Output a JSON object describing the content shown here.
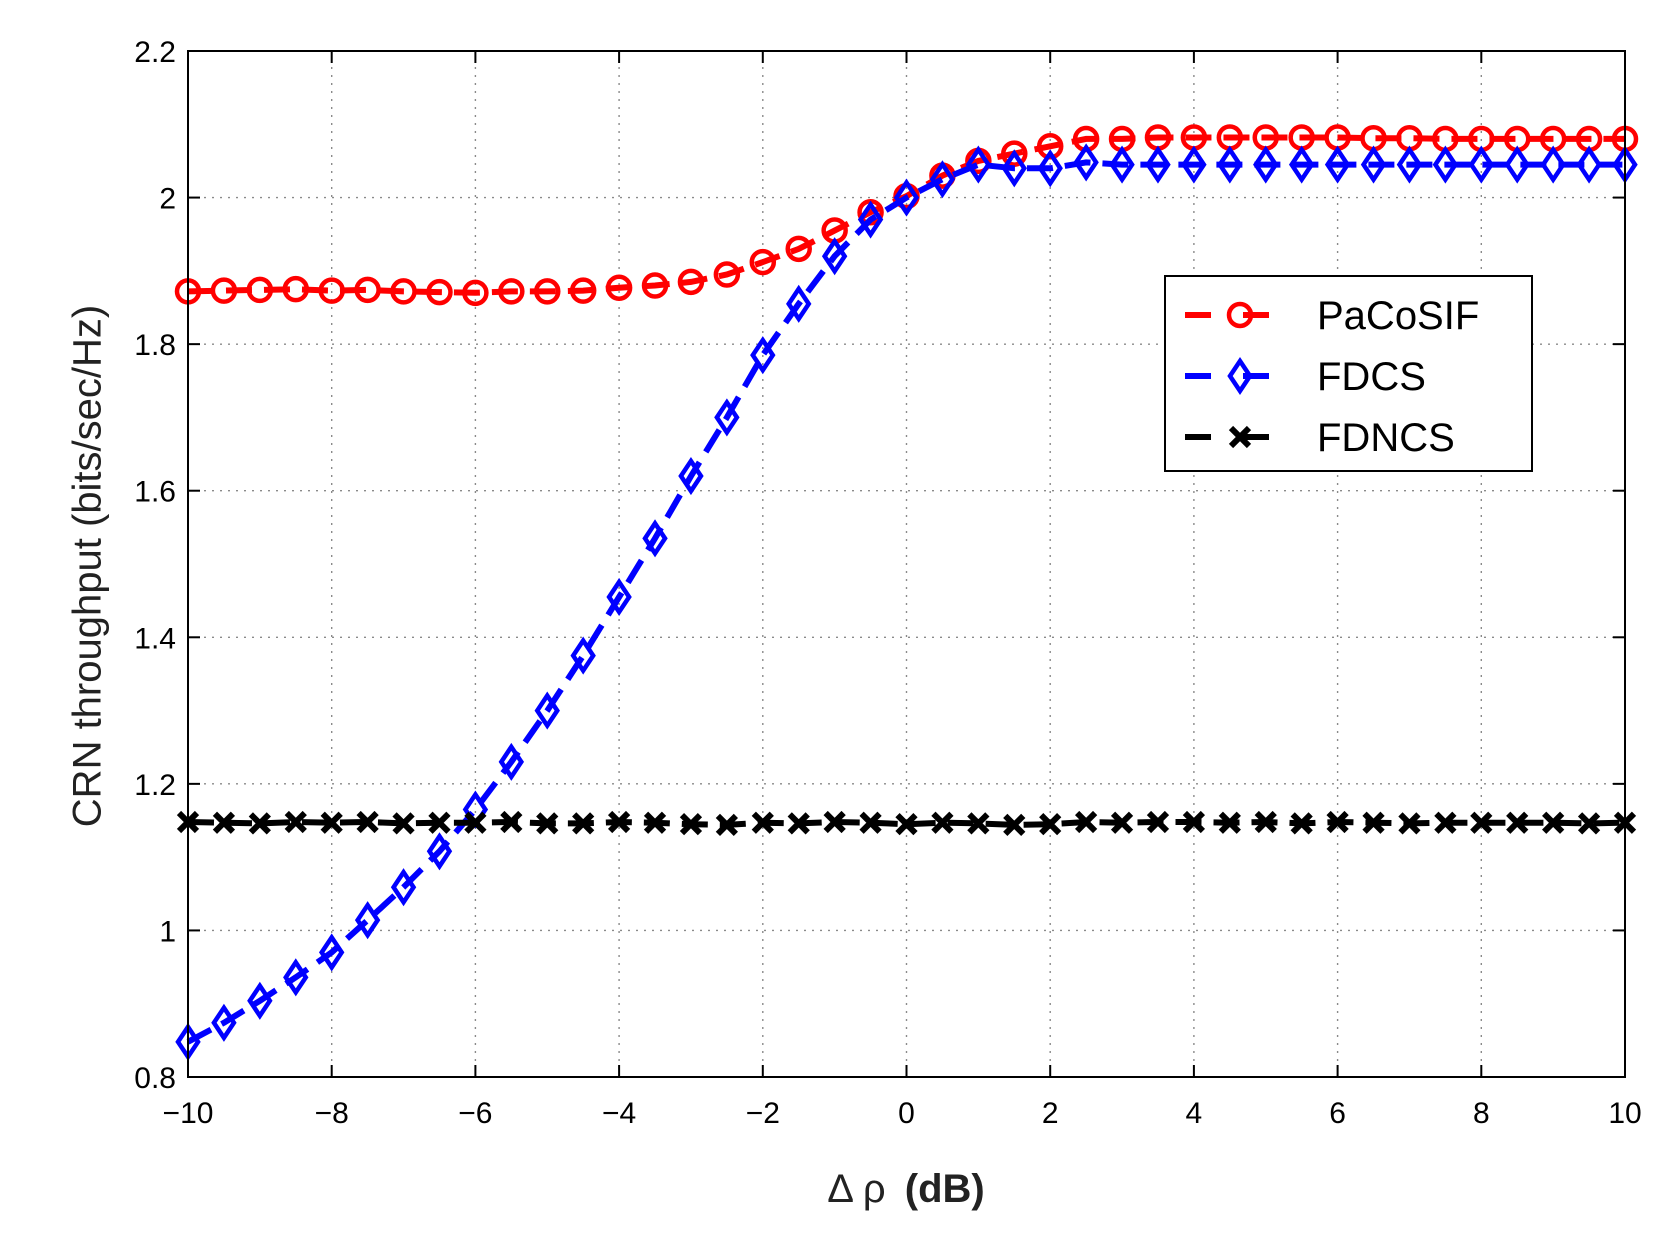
{
  "chart_data": {
    "type": "line",
    "title": "",
    "xlabel_symbol": "Δ ρ",
    "xlabel_unit": "(dB)",
    "ylabel": "CRN throughput  (bits/sec/Hz)",
    "xlim": [
      -10,
      10
    ],
    "ylim": [
      0.8,
      2.2
    ],
    "x_ticks": [
      -10,
      -8,
      -6,
      -4,
      -2,
      0,
      2,
      4,
      6,
      8,
      10
    ],
    "x_tick_labels": [
      "−10",
      "−8",
      "−6",
      "−4",
      "−2",
      "0",
      "2",
      "4",
      "6",
      "8",
      "10"
    ],
    "y_ticks": [
      0.8,
      1.0,
      1.2,
      1.4,
      1.6,
      1.8,
      2.0,
      2.2
    ],
    "y_tick_labels": [
      "0.8",
      "1",
      "1.2",
      "1.4",
      "1.6",
      "1.8",
      "2",
      "2.2"
    ],
    "grid": true,
    "legend_position": "upper-right",
    "x": [
      -10,
      -9.5,
      -9,
      -8.5,
      -8,
      -7.5,
      -7,
      -6.5,
      -6,
      -5.5,
      -5,
      -4.5,
      -4,
      -3.5,
      -3,
      -2.5,
      -2,
      -1.5,
      -1,
      -0.5,
      0,
      0.5,
      1,
      1.5,
      2,
      2.5,
      3,
      3.5,
      4,
      4.5,
      5,
      5.5,
      6,
      6.5,
      7,
      7.5,
      8,
      8.5,
      9,
      9.5,
      10
    ],
    "series": [
      {
        "name": "PaCoSIF",
        "color": "#ff0000",
        "marker": "circle",
        "values": [
          1.872,
          1.873,
          1.874,
          1.875,
          1.873,
          1.874,
          1.872,
          1.871,
          1.87,
          1.872,
          1.872,
          1.873,
          1.877,
          1.88,
          1.885,
          1.895,
          1.912,
          1.93,
          1.955,
          1.98,
          2.002,
          2.03,
          2.05,
          2.06,
          2.07,
          2.08,
          2.08,
          2.082,
          2.082,
          2.082,
          2.082,
          2.082,
          2.082,
          2.081,
          2.081,
          2.08,
          2.08,
          2.08,
          2.08,
          2.08,
          2.08
        ]
      },
      {
        "name": "FDCS",
        "color": "#0000ff",
        "marker": "diamond",
        "values": [
          0.848,
          0.874,
          0.904,
          0.936,
          0.97,
          1.014,
          1.059,
          1.108,
          1.165,
          1.23,
          1.3,
          1.375,
          1.455,
          1.535,
          1.62,
          1.7,
          1.785,
          1.855,
          1.92,
          1.97,
          2.0,
          2.025,
          2.045,
          2.04,
          2.04,
          2.048,
          2.045,
          2.045,
          2.045,
          2.045,
          2.045,
          2.045,
          2.045,
          2.045,
          2.045,
          2.045,
          2.045,
          2.045,
          2.045,
          2.045,
          2.045
        ]
      },
      {
        "name": "FDNCS",
        "color": "#000000",
        "marker": "x",
        "values": [
          1.148,
          1.147,
          1.146,
          1.148,
          1.147,
          1.148,
          1.146,
          1.147,
          1.147,
          1.148,
          1.146,
          1.146,
          1.148,
          1.147,
          1.145,
          1.144,
          1.147,
          1.146,
          1.148,
          1.147,
          1.145,
          1.147,
          1.146,
          1.144,
          1.145,
          1.148,
          1.147,
          1.148,
          1.148,
          1.147,
          1.148,
          1.146,
          1.148,
          1.147,
          1.146,
          1.147,
          1.147,
          1.147,
          1.147,
          1.146,
          1.147
        ]
      }
    ]
  }
}
